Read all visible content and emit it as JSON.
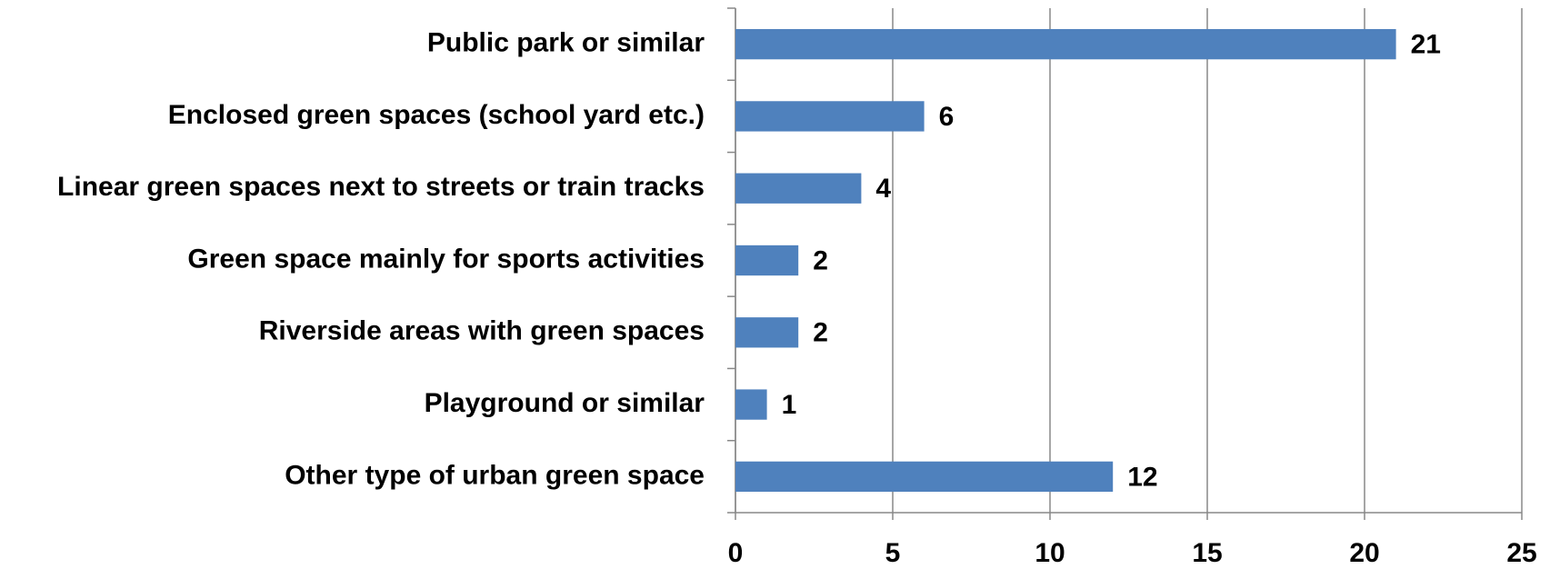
{
  "chart_data": {
    "type": "bar",
    "orientation": "horizontal",
    "categories": [
      "Public park or similar",
      "Enclosed green spaces (school yard etc.)",
      "Linear green spaces next to streets or train tracks",
      "Green space mainly for sports activities",
      "Riverside areas with green spaces",
      "Playground or similar",
      "Other type of urban green space"
    ],
    "values": [
      21,
      6,
      4,
      2,
      2,
      1,
      12
    ],
    "color": "#4f81bd",
    "xlim": [
      0,
      25
    ],
    "xticks": [
      0,
      5,
      10,
      15,
      20,
      25
    ],
    "grid": true
  }
}
